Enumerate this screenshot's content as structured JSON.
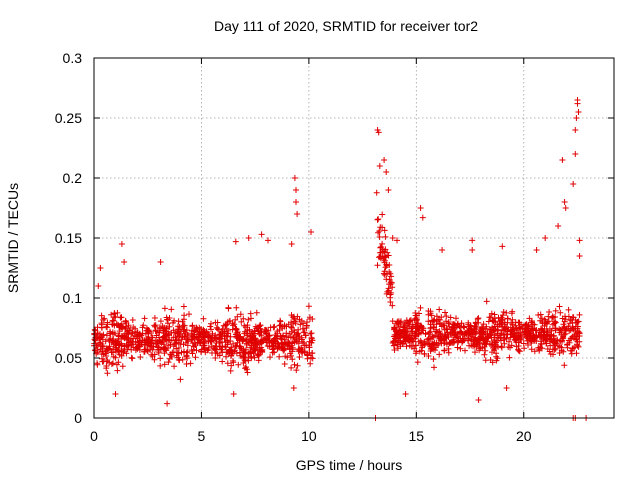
{
  "chart_data": {
    "type": "scatter",
    "title": "Day 111 of 2020, SRMTID for receiver tor2",
    "xlabel": "GPS time / hours",
    "ylabel": "SRMTID / TECUs",
    "xlim": [
      0,
      24.2
    ],
    "ylim": [
      0,
      0.3
    ],
    "x_ticks": [
      0,
      5,
      10,
      15,
      20
    ],
    "x_tick_labels": [
      "0",
      "5",
      "10",
      "15",
      "20"
    ],
    "y_ticks": [
      0,
      0.05,
      0.1,
      0.15,
      0.2,
      0.25,
      0.3
    ],
    "y_tick_labels": [
      "0",
      "0.05",
      "0.1",
      "0.15",
      "0.2",
      "0.25",
      "0.3"
    ],
    "grid": true,
    "marker": "+",
    "color": "#e00000",
    "series": [
      {
        "name": "SRMTID",
        "segments": [
          {
            "x_range": [
              0.0,
              10.2
            ],
            "mean": 0.065,
            "spread": 0.022,
            "n": 1020
          },
          {
            "x_range": [
              13.1,
              13.9
            ],
            "mean": 0.17,
            "spread": 0.03,
            "n": 60
          },
          {
            "x_range": [
              13.9,
              22.6
            ],
            "mean": 0.07,
            "spread": 0.02,
            "n": 880
          }
        ],
        "points": [
          [
            0.2,
            0.11
          ],
          [
            0.3,
            0.125
          ],
          [
            1.3,
            0.145
          ],
          [
            1.4,
            0.13
          ],
          [
            3.1,
            0.13
          ],
          [
            6.6,
            0.147
          ],
          [
            7.2,
            0.15
          ],
          [
            7.8,
            0.153
          ],
          [
            8.1,
            0.148
          ],
          [
            9.2,
            0.145
          ],
          [
            9.35,
            0.2
          ],
          [
            9.4,
            0.19
          ],
          [
            9.4,
            0.18
          ],
          [
            9.45,
            0.17
          ],
          [
            9.3,
            0.025
          ],
          [
            6.5,
            0.02
          ],
          [
            3.4,
            0.012
          ],
          [
            1.0,
            0.02
          ],
          [
            10.1,
            0.155
          ],
          [
            13.2,
            0.24
          ],
          [
            13.25,
            0.238
          ],
          [
            13.3,
            0.21
          ],
          [
            13.5,
            0.215
          ],
          [
            13.6,
            0.205
          ],
          [
            13.7,
            0.19
          ],
          [
            13.9,
            0.15
          ],
          [
            14.1,
            0.148
          ],
          [
            15.2,
            0.175
          ],
          [
            15.3,
            0.167
          ],
          [
            16.2,
            0.14
          ],
          [
            17.6,
            0.148
          ],
          [
            17.6,
            0.14
          ],
          [
            19.0,
            0.143
          ],
          [
            20.6,
            0.14
          ],
          [
            21.0,
            0.15
          ],
          [
            21.6,
            0.16
          ],
          [
            21.8,
            0.215
          ],
          [
            21.9,
            0.18
          ],
          [
            21.95,
            0.175
          ],
          [
            22.3,
            0.195
          ],
          [
            22.4,
            0.22
          ],
          [
            22.4,
            0.24
          ],
          [
            22.45,
            0.25
          ],
          [
            22.5,
            0.262
          ],
          [
            22.5,
            0.265
          ],
          [
            22.55,
            0.255
          ],
          [
            22.6,
            0.148
          ],
          [
            22.6,
            0.135
          ],
          [
            14.5,
            0.02
          ],
          [
            17.9,
            0.015
          ],
          [
            19.2,
            0.025
          ],
          [
            13.1,
            0.0
          ],
          [
            22.3,
            0.0
          ],
          [
            22.4,
            0.0
          ],
          [
            22.9,
            0.0
          ]
        ]
      }
    ]
  }
}
